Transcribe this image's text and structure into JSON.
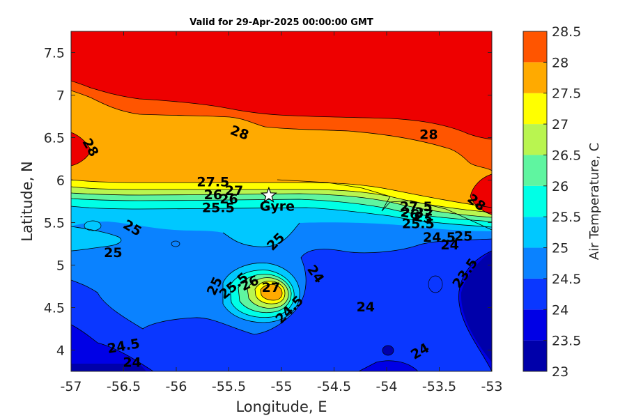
{
  "chart_data": {
    "type": "contour",
    "title": "Valid for 29-Apr-2025 00:00:00 GMT",
    "xlabel": "Longitude, E",
    "ylabel": "Latitude, N",
    "xlim": [
      -57,
      -53
    ],
    "ylim": [
      3.75,
      7.75
    ],
    "xticks": [
      "-57",
      "-56.5",
      "-56",
      "-55.5",
      "-55",
      "-54.5",
      "-54",
      "-53.5",
      "-53"
    ],
    "yticks": [
      "4",
      "4.5",
      "5",
      "5.5",
      "6",
      "6.5",
      "7",
      "7.5"
    ],
    "colorbar": {
      "label": "Air Temperature, C",
      "ticks": [
        "23",
        "23.5",
        "24",
        "24.5",
        "25",
        "25.5",
        "26",
        "26.5",
        "27",
        "27.5",
        "28",
        "28.5"
      ],
      "levels": [
        23,
        23.5,
        24,
        24.5,
        25,
        25.5,
        26,
        26.5,
        27,
        27.5,
        28,
        28.5
      ],
      "colors": [
        "#0000aa",
        "#0000e6",
        "#0a37ff",
        "#0a82ff",
        "#00c8ff",
        "#00ffe6",
        "#5ff5a0",
        "#b9f550",
        "#ffff00",
        "#ffaa00",
        "#ff5500",
        "#ee0000",
        "#aa0000"
      ]
    },
    "station": {
      "name": "Gyre",
      "lon": -55.12,
      "lat": 5.82,
      "marker": "star"
    },
    "contour_labels": [
      {
        "text": "28",
        "lon": -56.82,
        "lat": 6.38,
        "rot": 60
      },
      {
        "text": "28",
        "lon": -55.4,
        "lat": 6.55,
        "rot": 20
      },
      {
        "text": "28",
        "lon": -53.6,
        "lat": 6.53,
        "rot": 0
      },
      {
        "text": "28",
        "lon": -53.15,
        "lat": 5.73,
        "rot": 38
      },
      {
        "text": "27.5",
        "lon": -55.65,
        "lat": 5.97,
        "rot": 0
      },
      {
        "text": "27",
        "lon": -55.45,
        "lat": 5.87,
        "rot": 0
      },
      {
        "text": "26",
        "lon": -55.65,
        "lat": 5.82,
        "rot": 0
      },
      {
        "text": "26",
        "lon": -55.5,
        "lat": 5.77,
        "rot": 0
      },
      {
        "text": "25.5",
        "lon": -55.6,
        "lat": 5.67,
        "rot": 0
      },
      {
        "text": "25",
        "lon": -56.42,
        "lat": 5.43,
        "rot": 30
      },
      {
        "text": "25",
        "lon": -56.6,
        "lat": 5.14,
        "rot": 0
      },
      {
        "text": "25",
        "lon": -55.05,
        "lat": 5.27,
        "rot": -45
      },
      {
        "text": "25",
        "lon": -55.63,
        "lat": 4.75,
        "rot": -65
      },
      {
        "text": "25.5",
        "lon": -55.45,
        "lat": 4.75,
        "rot": -40
      },
      {
        "text": "26",
        "lon": -55.3,
        "lat": 4.78,
        "rot": -25
      },
      {
        "text": "27",
        "lon": -55.1,
        "lat": 4.73,
        "rot": 0
      },
      {
        "text": "24",
        "lon": -54.68,
        "lat": 4.89,
        "rot": 55
      },
      {
        "text": "24.5",
        "lon": -54.92,
        "lat": 4.47,
        "rot": -45
      },
      {
        "text": "24",
        "lon": -54.2,
        "lat": 4.5,
        "rot": 0
      },
      {
        "text": "27.5",
        "lon": -53.72,
        "lat": 5.68,
        "rot": 0
      },
      {
        "text": "27",
        "lon": -53.65,
        "lat": 5.6,
        "rot": 10
      },
      {
        "text": "26",
        "lon": -53.78,
        "lat": 5.6,
        "rot": 10
      },
      {
        "text": "25",
        "lon": -53.65,
        "lat": 5.55,
        "rot": 10
      },
      {
        "text": "25.5",
        "lon": -53.7,
        "lat": 5.48,
        "rot": 0
      },
      {
        "text": "24.5",
        "lon": -53.5,
        "lat": 5.32,
        "rot": 0
      },
      {
        "text": "25",
        "lon": -53.27,
        "lat": 5.33,
        "rot": 0
      },
      {
        "text": "24",
        "lon": -53.4,
        "lat": 5.23,
        "rot": 0
      },
      {
        "text": "23.5",
        "lon": -53.25,
        "lat": 4.9,
        "rot": -55
      },
      {
        "text": "24.5",
        "lon": -56.5,
        "lat": 4.04,
        "rot": -10
      },
      {
        "text": "24",
        "lon": -56.42,
        "lat": 3.85,
        "rot": 0
      },
      {
        "text": "24",
        "lon": -53.68,
        "lat": 3.98,
        "rot": -30
      }
    ]
  }
}
